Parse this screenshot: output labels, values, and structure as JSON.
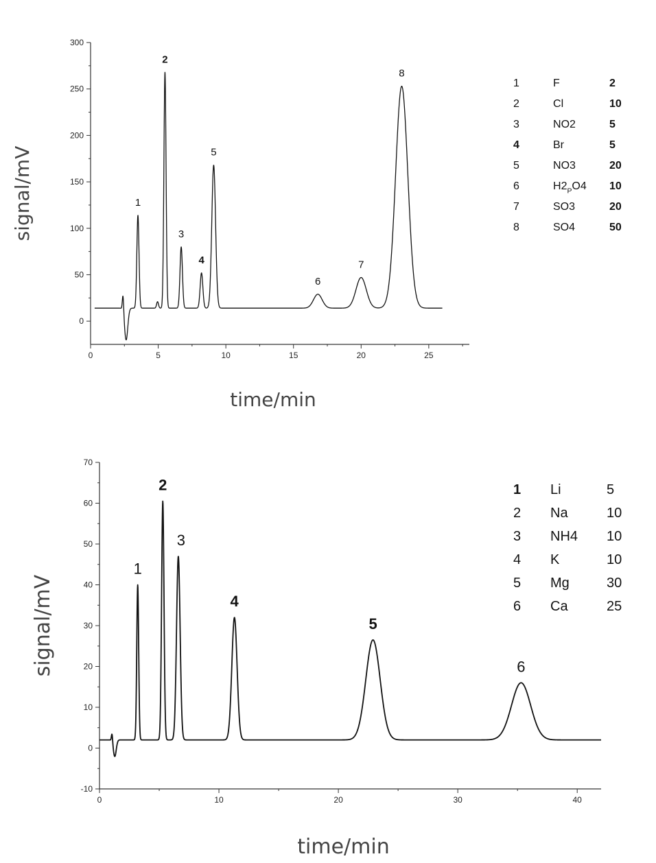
{
  "chart_data": [
    {
      "type": "line",
      "title": "",
      "xlabel": "time/min",
      "ylabel": "signal/mV",
      "xlim": [
        0,
        28
      ],
      "ylim": [
        -25,
        300
      ],
      "x_ticks": [
        0,
        5,
        10,
        15,
        20,
        25
      ],
      "y_ticks": [
        0,
        50,
        100,
        150,
        200,
        250,
        300
      ],
      "grid": false,
      "baseline": 14,
      "x_end": 26,
      "dip": {
        "x": 2.45,
        "up": 18,
        "down": -24
      },
      "peaks": [
        {
          "label": "1",
          "t": 3.5,
          "height": 114,
          "width": 0.08
        },
        {
          "label": "2",
          "t": 5.5,
          "height": 268,
          "width": 0.08
        },
        {
          "label": "3",
          "t": 6.7,
          "height": 80,
          "width": 0.09
        },
        {
          "label": "4",
          "t": 8.2,
          "height": 52,
          "width": 0.1
        },
        {
          "label": "5",
          "t": 9.1,
          "height": 168,
          "width": 0.14
        },
        {
          "label": "6",
          "t": 16.8,
          "height": 29,
          "width": 0.32
        },
        {
          "label": "7",
          "t": 20.0,
          "height": 47,
          "width": 0.38
        },
        {
          "label": "8",
          "t": 23.0,
          "height": 253,
          "width": 0.45
        }
      ],
      "minor_peaks": [
        {
          "t": 4.95,
          "height": 21,
          "width": 0.07
        }
      ],
      "legend": {
        "position": "right",
        "entries": [
          {
            "num": "1",
            "ion": "F",
            "sub": [],
            "value": "2"
          },
          {
            "num": "2",
            "ion": "Cl",
            "sub": [],
            "value": "10"
          },
          {
            "num": "3",
            "ion": "NO2",
            "sub": [
              3
            ],
            "value": "5"
          },
          {
            "num": "4",
            "ion": "Br",
            "sub": [],
            "value": "5"
          },
          {
            "num": "5",
            "ion": "NO3",
            "sub": [
              3
            ],
            "value": "20"
          },
          {
            "num": "6",
            "ion": "H2PO4",
            "sub": [
              2,
              5
            ],
            "value": "10"
          },
          {
            "num": "7",
            "ion": "SO3",
            "sub": [
              3
            ],
            "value": "20"
          },
          {
            "num": "8",
            "ion": "SO4",
            "sub": [
              3
            ],
            "value": "50"
          }
        ]
      }
    },
    {
      "type": "line",
      "title": "",
      "xlabel": "time/min",
      "ylabel": "signal/mV",
      "xlim": [
        0,
        42
      ],
      "ylim": [
        -10,
        70
      ],
      "x_ticks": [
        0,
        10,
        20,
        30,
        40
      ],
      "y_ticks": [
        -10,
        0,
        10,
        20,
        30,
        40,
        50,
        60,
        70
      ],
      "grid": false,
      "baseline": 2,
      "x_end": 42,
      "dip": {
        "x": 1.1,
        "up": 2,
        "down": -2.5
      },
      "peaks": [
        {
          "label": "1",
          "t": 3.2,
          "height": 40,
          "width": 0.08
        },
        {
          "label": "2",
          "t": 5.3,
          "height": 60.5,
          "width": 0.1
        },
        {
          "label": "3",
          "t": 6.6,
          "height": 47,
          "width": 0.15
        },
        {
          "label": "4",
          "t": 11.3,
          "height": 32,
          "width": 0.22
        },
        {
          "label": "5",
          "t": 22.9,
          "height": 26.5,
          "width": 0.6
        },
        {
          "label": "6",
          "t": 35.3,
          "height": 16,
          "width": 0.8
        }
      ],
      "minor_peaks": [],
      "legend": {
        "position": "right",
        "entries": [
          {
            "num": "1",
            "ion": "Li",
            "sub": [],
            "value": "5"
          },
          {
            "num": "2",
            "ion": "Na",
            "sub": [],
            "value": "10"
          },
          {
            "num": "3",
            "ion": "NH4",
            "sub": [],
            "value": "10"
          },
          {
            "num": "4",
            "ion": "K",
            "sub": [],
            "value": "10"
          },
          {
            "num": "5",
            "ion": "Mg",
            "sub": [],
            "value": "30"
          },
          {
            "num": "6",
            "ion": "Ca",
            "sub": [],
            "value": "25"
          }
        ]
      }
    }
  ]
}
